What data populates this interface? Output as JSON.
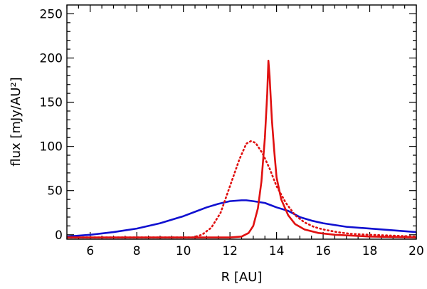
{
  "chart_data": {
    "type": "line",
    "title": "",
    "xlabel": "R [AU]",
    "ylabel": "flux [mJy/AU²]",
    "xlim": [
      5,
      20
    ],
    "ylim": [
      -5,
      260
    ],
    "x_ticks": [
      6,
      8,
      10,
      12,
      14,
      16,
      18,
      20
    ],
    "x_tick_labels": [
      "6",
      "8",
      "10",
      "12",
      "14",
      "16",
      "18",
      "20"
    ],
    "y_ticks": [
      0,
      50,
      100,
      150,
      200,
      250
    ],
    "y_tick_labels": [
      "0",
      "50",
      "100",
      "150",
      "200",
      "250"
    ],
    "grid": false,
    "legend": "none",
    "series": [
      {
        "color": "#1010d0",
        "style": "solid",
        "x": [
          5,
          6,
          7,
          8,
          9,
          10,
          10.5,
          11,
          11.5,
          12,
          12.5,
          12.7,
          13,
          13.5,
          14,
          14.5,
          15,
          15.5,
          16,
          17,
          18,
          19,
          20
        ],
        "y": [
          -2,
          0,
          3,
          7,
          13,
          21,
          26,
          31,
          35,
          38,
          39,
          39,
          38,
          36,
          31,
          27,
          20,
          16,
          13,
          9,
          7,
          5,
          3
        ]
      },
      {
        "color": "#e01010",
        "style": "dotted",
        "x": [
          5,
          10.4,
          10.8,
          11.2,
          11.6,
          12,
          12.4,
          12.7,
          12.9,
          13.1,
          13.4,
          13.7,
          14,
          14.4,
          14.8,
          15.2,
          15.6,
          16,
          16.6,
          17.2,
          18,
          20
        ],
        "y": [
          -3,
          -3,
          0,
          8,
          25,
          55,
          85,
          103,
          106,
          104,
          92,
          75,
          55,
          36,
          22,
          14,
          9,
          6,
          3,
          1,
          0,
          -2
        ]
      },
      {
        "color": "#e01010",
        "style": "solid",
        "x": [
          5,
          12,
          12.5,
          12.8,
          13,
          13.2,
          13.35,
          13.5,
          13.6,
          13.65,
          13.7,
          13.8,
          13.9,
          14,
          14.2,
          14.5,
          14.8,
          15.2,
          15.8,
          16.5,
          18,
          20
        ],
        "y": [
          -3,
          -3,
          -2,
          2,
          10,
          30,
          60,
          110,
          160,
          197,
          180,
          130,
          95,
          65,
          40,
          22,
          12,
          6,
          2,
          0,
          -2,
          -3
        ]
      }
    ]
  }
}
